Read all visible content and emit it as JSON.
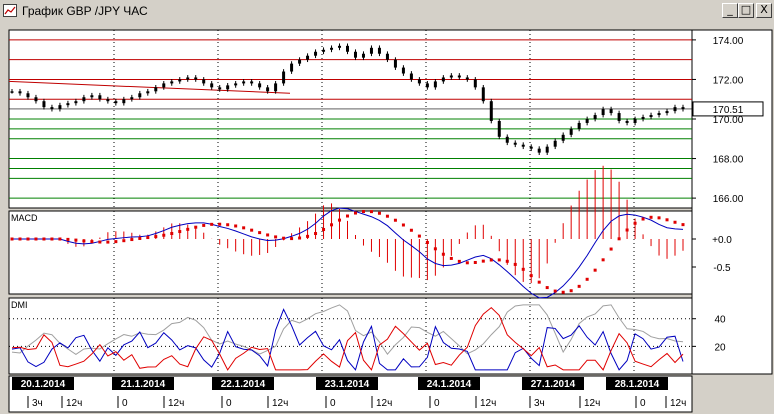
{
  "window": {
    "title": "График GBP /JPY ЧАС",
    "icon": "chart-icon",
    "minimize_label": "_",
    "restore_label": "□",
    "close_label": "X"
  },
  "price_panel": {
    "y_ticks": [
      "174.00",
      "172.00",
      "170.00",
      "168.00",
      "166.00"
    ],
    "current_price": "170.51",
    "red_levels": [
      174.0,
      173.0,
      172.0,
      171.0
    ],
    "green_levels": [
      170.0,
      169.5,
      169.0,
      168.0,
      167.5,
      167.0,
      166.0
    ]
  },
  "macd_panel": {
    "label": "MACD",
    "y_ticks": [
      "+0.0",
      "-0.5"
    ]
  },
  "dmi_panel": {
    "label": "DMI",
    "y_ticks": [
      "40",
      "20"
    ]
  },
  "time_axis": {
    "dates": [
      "20.1.2014",
      "21.1.2014",
      "22.1.2014",
      "23.1.2014",
      "24.1.2014",
      "27.1.2014",
      "28.1.2014"
    ],
    "times": [
      "3ч",
      "12ч",
      "0",
      "12ч",
      "0",
      "12ч",
      "0",
      "12ч",
      "0",
      "12ч",
      "3ч",
      "12ч",
      "0",
      "12ч"
    ]
  },
  "colors": {
    "up_line": "#0000c0",
    "signal": "#e00000",
    "adx": "#a0a0a0",
    "resistance": "#c00000",
    "support": "#008000"
  },
  "chart_data": {
    "type": "line",
    "title": "График GBP /JPY ЧАС",
    "ylim": [
      165.5,
      174.5
    ],
    "close_prices": [
      171.4,
      171.3,
      171.1,
      170.9,
      170.6,
      170.5,
      170.7,
      170.8,
      170.9,
      171.1,
      171.2,
      171.0,
      170.9,
      170.8,
      171.0,
      171.1,
      171.3,
      171.4,
      171.6,
      171.8,
      171.9,
      172.0,
      172.1,
      172.0,
      171.8,
      171.6,
      171.5,
      171.7,
      171.8,
      171.9,
      171.8,
      171.6,
      171.4,
      171.8,
      172.4,
      172.8,
      173.0,
      173.2,
      173.4,
      173.5,
      173.6,
      173.7,
      173.4,
      173.1,
      173.3,
      173.6,
      173.3,
      173.0,
      172.6,
      172.3,
      172.0,
      171.8,
      171.6,
      171.9,
      172.1,
      172.2,
      172.1,
      172.0,
      171.6,
      170.9,
      169.9,
      169.1,
      168.8,
      168.7,
      168.6,
      168.5,
      168.3,
      168.6,
      168.9,
      169.2,
      169.5,
      169.8,
      170.0,
      170.2,
      170.5,
      170.3,
      169.9,
      169.8,
      170.0,
      170.1,
      170.2,
      170.3,
      170.4,
      170.6,
      170.5
    ],
    "macd_ylim": [
      -0.85,
      0.3
    ],
    "dmi_ylim": [
      0,
      55
    ]
  }
}
